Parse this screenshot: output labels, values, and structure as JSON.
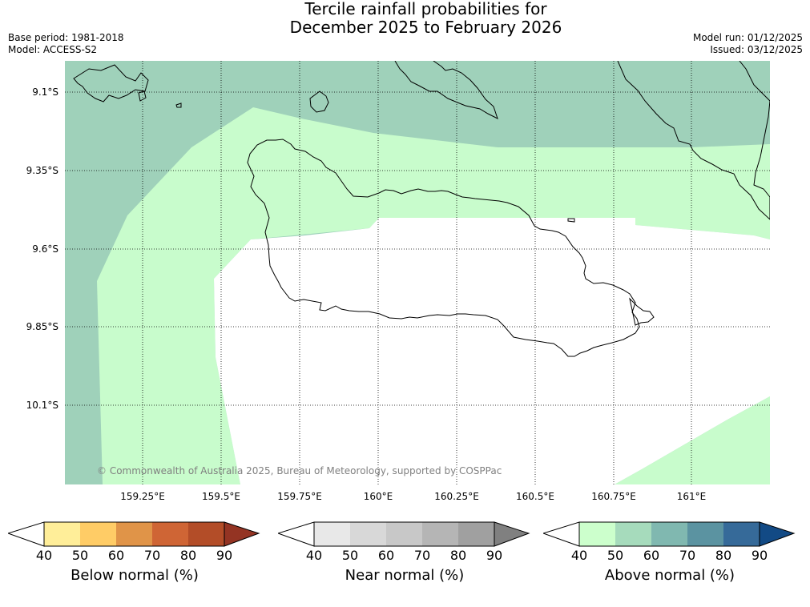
{
  "title": {
    "line1": "Tercile rainfall probabilities for",
    "line2": "December 2025 to February 2026"
  },
  "meta_left": {
    "base_period": "Base period: 1981-2018",
    "model": "Model: ACCESS-S2"
  },
  "meta_right": {
    "model_run": "Model run: 01/12/2025",
    "issued": "Issued: 03/12/2025"
  },
  "map": {
    "latitude_labels": [
      "9.1°S",
      "9.35°S",
      "9.6°S",
      "9.85°S",
      "10.1°S"
    ],
    "longitude_labels": [
      "159.25°E",
      "159.5°E",
      "159.75°E",
      "160°E",
      "160.25°E",
      "160.5°E",
      "160.75°E",
      "161°E"
    ],
    "latitudes": [
      9.1,
      9.35,
      9.6,
      9.85,
      10.1
    ],
    "longitudes": [
      159.25,
      159.5,
      159.75,
      160.0,
      160.25,
      160.5,
      160.75,
      161.0
    ],
    "gridlines": "dotted",
    "copyright": "© Commonwealth of Australia 2025, Bureau of Meteorology, supported by COSPPac",
    "category_colors": {
      "above_normal_40_50": "#c8fccc",
      "above_normal_50_60": "#9fd1ba",
      "no_shading": "#ffffff"
    }
  },
  "colorbars": [
    {
      "title": "Below normal (%)",
      "ticks": [
        "40",
        "50",
        "60",
        "70",
        "80",
        "90"
      ],
      "colors": [
        "#ffffff",
        "#ffee99",
        "#ffcc66",
        "#e09448",
        "#cf6535",
        "#b34d28",
        "#943423"
      ]
    },
    {
      "title": "Near normal (%)",
      "ticks": [
        "40",
        "50",
        "60",
        "70",
        "80",
        "90"
      ],
      "colors": [
        "#ffffff",
        "#e8e8e8",
        "#d8d8d8",
        "#c8c8c8",
        "#b5b5b5",
        "#a0a0a0",
        "#808080"
      ]
    },
    {
      "title": "Above normal (%)",
      "ticks": [
        "40",
        "50",
        "60",
        "70",
        "80",
        "90"
      ],
      "colors": [
        "#ffffff",
        "#ccffcc",
        "#a6dbbc",
        "#80b8b0",
        "#5b93a1",
        "#366a99",
        "#124a85"
      ]
    }
  ]
}
